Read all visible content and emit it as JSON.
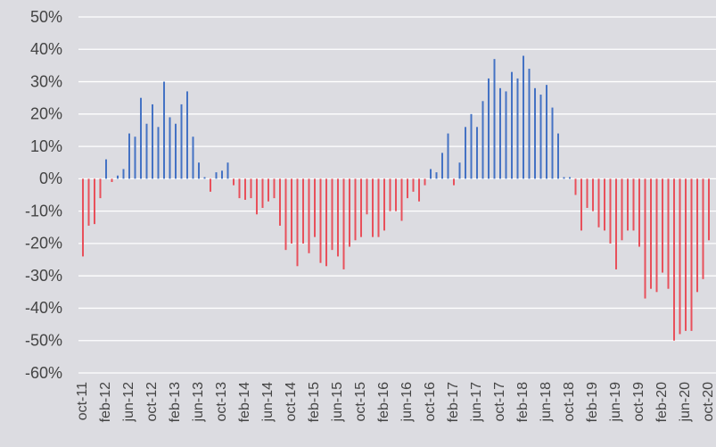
{
  "chart_data": {
    "type": "bar",
    "categories": [
      "oct-11",
      null,
      null,
      null,
      "feb-12",
      null,
      null,
      null,
      "jun-12",
      null,
      null,
      null,
      "oct-12",
      null,
      null,
      null,
      "feb-13",
      null,
      null,
      null,
      "jun-13",
      null,
      null,
      null,
      "oct-13",
      null,
      null,
      null,
      "feb-14",
      null,
      null,
      null,
      "jun-14",
      null,
      null,
      null,
      "oct-14",
      null,
      null,
      null,
      "feb-15",
      null,
      null,
      null,
      "jun-15",
      null,
      null,
      null,
      "oct-15",
      null,
      null,
      null,
      "feb-16",
      null,
      null,
      null,
      "jun-16",
      null,
      null,
      null,
      "oct-16",
      null,
      null,
      null,
      "feb-17",
      null,
      null,
      null,
      "jun-17",
      null,
      null,
      null,
      "oct-17",
      null,
      null,
      null,
      "feb-18",
      null,
      null,
      null,
      "jun-18",
      null,
      null,
      null,
      "oct-18",
      null,
      null,
      null,
      "feb-19",
      null,
      null,
      null,
      "jun-19",
      null,
      null,
      null,
      "oct-19",
      null,
      null,
      null,
      "feb-20",
      null,
      null,
      null,
      "jun-20",
      null,
      null,
      null,
      "oct-20"
    ],
    "values": [
      -24,
      -14.5,
      -14,
      -6,
      6,
      -1,
      1,
      3,
      14,
      13,
      25,
      17,
      23,
      16,
      30,
      19,
      17,
      23,
      27,
      13,
      5,
      0.5,
      -4,
      2,
      2.5,
      5,
      -2,
      -6,
      -6.5,
      -6,
      -11,
      -9,
      -7,
      -6,
      -14.5,
      -22,
      -20,
      -27,
      -20,
      -23,
      -18,
      -26,
      -27,
      -22,
      -24,
      -28,
      -21,
      -19,
      -18,
      -11,
      -18,
      -18,
      -16,
      -10,
      -10,
      -13,
      -6,
      -4,
      -7,
      -2,
      3,
      2,
      8,
      14,
      -2,
      5,
      16,
      20,
      16,
      24,
      31,
      37,
      28,
      27,
      33,
      31,
      38,
      34,
      28,
      26,
      29,
      22,
      14,
      0.5,
      0.5,
      -5,
      -16,
      -9,
      -10,
      -15,
      -16,
      -20,
      -28,
      -19,
      -16,
      -16,
      -21,
      -37,
      -34,
      -35,
      -29,
      -34,
      -50,
      -48,
      -47,
      -47,
      -35,
      -31,
      -19
    ],
    "color": "#4472c4",
    "negative_color": "#e8505b",
    "ylim": [
      -60,
      50
    ],
    "yticks": [
      {
        "value": -60,
        "label": "-60%"
      },
      {
        "value": -50,
        "label": "-50%"
      },
      {
        "value": -40,
        "label": "-40%"
      },
      {
        "value": -30,
        "label": "-30%"
      },
      {
        "value": -20,
        "label": "-20%"
      },
      {
        "value": -10,
        "label": "-10%"
      },
      {
        "value": 0,
        "label": "0%"
      },
      {
        "value": 10,
        "label": "10%"
      },
      {
        "value": 20,
        "label": "20%"
      },
      {
        "value": 30,
        "label": "30%"
      },
      {
        "value": 40,
        "label": "40%"
      },
      {
        "value": 50,
        "label": "50%"
      }
    ],
    "grid": true
  }
}
